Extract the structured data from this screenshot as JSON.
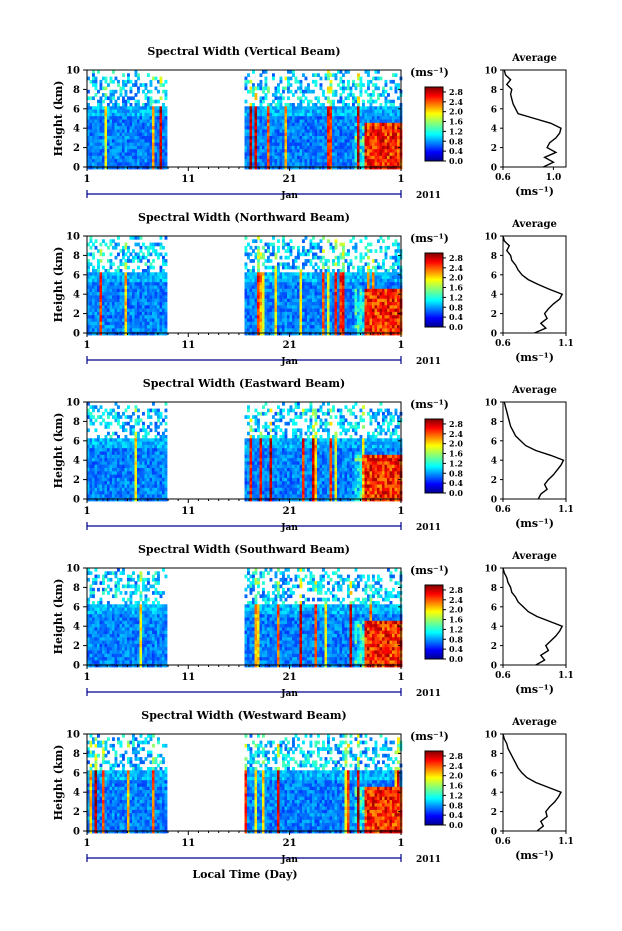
{
  "figure": {
    "xlabel": "Local Time (Day)",
    "month_label": "Jan",
    "year_label": "2011"
  },
  "chart_data": [
    {
      "type": "heatmap",
      "title": "Spectral Width (Vertical Beam)",
      "ylabel": "Height (km)",
      "xlabel": "",
      "x_tick_labels": [
        "1",
        "11",
        "21",
        "1"
      ],
      "x_range_days": [
        1,
        32
      ],
      "y_ticks": [
        0,
        2,
        4,
        6,
        8,
        10
      ],
      "ylim": [
        0,
        10
      ],
      "data_gap_days": [
        9,
        16.5
      ],
      "colorbar": {
        "unit_label": "(ms⁻¹)",
        "ticks": [
          "0.0",
          "0.4",
          "0.8",
          "1.2",
          "1.6",
          "2.0",
          "2.4",
          "2.8"
        ],
        "range": [
          0,
          3.0
        ]
      },
      "average_profile": {
        "title": "Average",
        "xlabel": "(ms⁻¹)",
        "xticks": [
          "0.6",
          "1.0"
        ],
        "xlim": [
          0.6,
          1.1
        ],
        "height_km": [
          0,
          0.5,
          1,
          1.5,
          2,
          2.5,
          3,
          3.5,
          4,
          4.5,
          5,
          5.5,
          6,
          6.5,
          7,
          7.5,
          8,
          8.5,
          9,
          9.5,
          10
        ],
        "width_ms": [
          0.92,
          1.0,
          0.93,
          1.02,
          0.95,
          0.97,
          1.02,
          1.05,
          1.06,
          0.98,
          0.85,
          0.72,
          0.7,
          0.68,
          0.67,
          0.66,
          0.67,
          0.63,
          0.66,
          0.62,
          0.61
        ]
      }
    },
    {
      "type": "heatmap",
      "title": "Spectral Width (Northward Beam)",
      "ylabel": "Height (km)",
      "xlabel": "",
      "x_tick_labels": [
        "1",
        "11",
        "21",
        "1"
      ],
      "x_range_days": [
        1,
        32
      ],
      "y_ticks": [
        0,
        2,
        4,
        6,
        8,
        10
      ],
      "ylim": [
        0,
        10
      ],
      "data_gap_days": [
        9,
        16.5
      ],
      "colorbar": {
        "unit_label": "(ms⁻¹)",
        "ticks": [
          "0.0",
          "0.4",
          "0.8",
          "1.2",
          "1.6",
          "2.0",
          "2.4",
          "2.8"
        ],
        "range": [
          0,
          3.0
        ]
      },
      "average_profile": {
        "title": "Average",
        "xlabel": "(ms⁻¹)",
        "xticks": [
          "0.6",
          "1.1"
        ],
        "xlim": [
          0.6,
          1.1
        ],
        "height_km": [
          0,
          0.5,
          1,
          1.5,
          2,
          2.5,
          3,
          3.5,
          4,
          4.5,
          5,
          5.5,
          6,
          6.5,
          7,
          7.5,
          8,
          8.5,
          9,
          9.5,
          10
        ],
        "width_ms": [
          0.85,
          0.94,
          0.9,
          0.95,
          0.93,
          0.96,
          1.0,
          1.05,
          1.07,
          0.97,
          0.88,
          0.8,
          0.75,
          0.72,
          0.7,
          0.67,
          0.66,
          0.63,
          0.65,
          0.61,
          0.6
        ]
      }
    },
    {
      "type": "heatmap",
      "title": "Spectral Width (Eastward Beam)",
      "ylabel": "Height (km)",
      "xlabel": "",
      "x_tick_labels": [
        "1",
        "11",
        "21",
        "1"
      ],
      "x_range_days": [
        1,
        32
      ],
      "y_ticks": [
        0,
        2,
        4,
        6,
        8,
        10
      ],
      "ylim": [
        0,
        10
      ],
      "data_gap_days": [
        9,
        16.5
      ],
      "colorbar": {
        "unit_label": "(ms⁻¹)",
        "ticks": [
          "0.0",
          "0.4",
          "0.8",
          "1.2",
          "1.6",
          "2.0",
          "2.4",
          "2.8"
        ],
        "range": [
          0,
          3.0
        ]
      },
      "average_profile": {
        "title": "Average",
        "xlabel": "(ms⁻¹)",
        "xticks": [
          "0.6",
          "1.1"
        ],
        "xlim": [
          0.6,
          1.1
        ],
        "height_km": [
          0,
          0.5,
          1,
          1.5,
          2,
          2.5,
          3,
          3.5,
          4,
          4.5,
          5,
          5.5,
          6,
          6.5,
          7,
          7.5,
          8,
          8.5,
          9,
          9.5,
          10
        ],
        "width_ms": [
          0.88,
          0.9,
          0.95,
          0.93,
          0.96,
          1.0,
          1.03,
          1.06,
          1.08,
          0.98,
          0.86,
          0.78,
          0.74,
          0.7,
          0.68,
          0.66,
          0.65,
          0.64,
          0.63,
          0.62,
          0.61
        ]
      }
    },
    {
      "type": "heatmap",
      "title": "Spectral Width (Southward Beam)",
      "ylabel": "Height (km)",
      "xlabel": "",
      "x_tick_labels": [
        "1",
        "11",
        "21",
        "1"
      ],
      "x_range_days": [
        1,
        32
      ],
      "y_ticks": [
        0,
        2,
        4,
        6,
        8,
        10
      ],
      "ylim": [
        0,
        10
      ],
      "data_gap_days": [
        9,
        16.5
      ],
      "colorbar": {
        "unit_label": "(ms⁻¹)",
        "ticks": [
          "0.0",
          "0.4",
          "0.8",
          "1.2",
          "1.6",
          "2.0",
          "2.4",
          "2.8"
        ],
        "range": [
          0,
          3.0
        ]
      },
      "average_profile": {
        "title": "Average",
        "xlabel": "(ms⁻¹)",
        "xticks": [
          "0.6",
          "1.1"
        ],
        "xlim": [
          0.6,
          1.1
        ],
        "height_km": [
          0,
          0.5,
          1,
          1.5,
          2,
          2.5,
          3,
          3.5,
          4,
          4.5,
          5,
          5.5,
          6,
          6.5,
          7,
          7.5,
          8,
          8.5,
          9,
          9.5,
          10
        ],
        "width_ms": [
          0.86,
          0.93,
          0.9,
          0.96,
          0.94,
          0.98,
          1.02,
          1.05,
          1.07,
          0.97,
          0.87,
          0.8,
          0.76,
          0.72,
          0.7,
          0.67,
          0.66,
          0.64,
          0.63,
          0.61,
          0.6
        ]
      }
    },
    {
      "type": "heatmap",
      "title": "Spectral Width (Westward Beam)",
      "ylabel": "Height (km)",
      "xlabel": "Local Time (Day)",
      "x_tick_labels": [
        "1",
        "11",
        "21",
        "1"
      ],
      "x_range_days": [
        1,
        32
      ],
      "y_ticks": [
        0,
        2,
        4,
        6,
        8,
        10
      ],
      "ylim": [
        0,
        10
      ],
      "data_gap_days": [
        9,
        16.5
      ],
      "colorbar": {
        "unit_label": "(ms⁻¹)",
        "ticks": [
          "0.0",
          "0.4",
          "0.8",
          "1.2",
          "1.6",
          "2.0",
          "2.4",
          "2.8"
        ],
        "range": [
          0,
          3.0
        ]
      },
      "average_profile": {
        "title": "Average",
        "xlabel": "(ms⁻¹)",
        "xticks": [
          "0.6",
          "1.1"
        ],
        "xlim": [
          0.6,
          1.1
        ],
        "height_km": [
          0,
          0.5,
          1,
          1.5,
          2,
          2.5,
          3,
          3.5,
          4,
          4.5,
          5,
          5.5,
          6,
          6.5,
          7,
          7.5,
          8,
          8.5,
          9,
          9.5,
          10
        ],
        "width_ms": [
          0.87,
          0.92,
          0.9,
          0.95,
          0.94,
          0.97,
          1.01,
          1.04,
          1.06,
          0.96,
          0.86,
          0.79,
          0.75,
          0.72,
          0.7,
          0.68,
          0.66,
          0.64,
          0.63,
          0.61,
          0.6
        ]
      }
    }
  ]
}
